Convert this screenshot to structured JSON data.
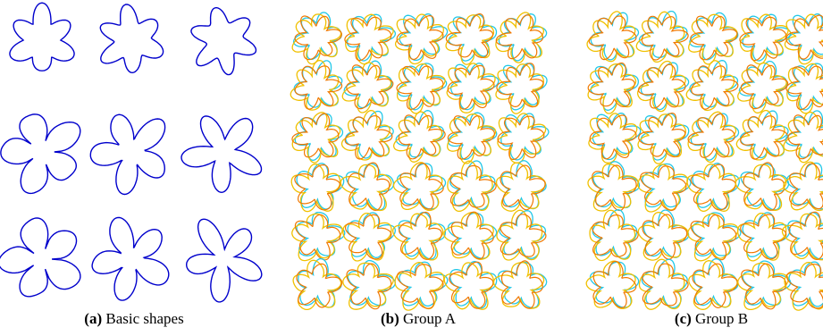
{
  "panels": [
    {
      "label": "(a)",
      "caption": "Basic shapes"
    },
    {
      "label": "(b)",
      "caption": "Group A"
    },
    {
      "label": "(c)",
      "caption": "Group B"
    }
  ]
}
